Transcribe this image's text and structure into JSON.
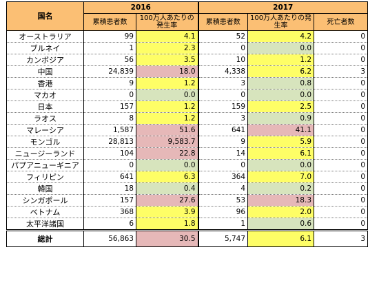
{
  "header": {
    "country_label": "国名",
    "year_2016": "2016",
    "year_2017": "2017",
    "cum_patients": "累積患者数",
    "rate_per_million": "100万人あたりの発生率",
    "deaths": "死亡者数"
  },
  "rows": [
    {
      "country": "オーストラリア",
      "c16": "99",
      "r16": "4.1",
      "r16_color": "yellow",
      "c17": "52",
      "r17": "4.2",
      "r17_color": "yellow",
      "d": "0"
    },
    {
      "country": "ブルネイ",
      "c16": "1",
      "r16": "2.3",
      "r16_color": "yellow",
      "c17": "0",
      "r17": "0.0",
      "r17_color": "green",
      "d": "0"
    },
    {
      "country": "カンボジア",
      "c16": "56",
      "r16": "3.5",
      "r16_color": "yellow",
      "c17": "10",
      "r17": "1.2",
      "r17_color": "yellow",
      "d": "0"
    },
    {
      "country": "中国",
      "c16": "24,839",
      "r16": "18.0",
      "r16_color": "pink",
      "c17": "4,338",
      "r17": "6.2",
      "r17_color": "yellow",
      "d": "3"
    },
    {
      "country": "香港",
      "c16": "9",
      "r16": "1.2",
      "r16_color": "yellow",
      "c17": "3",
      "r17": "0.8",
      "r17_color": "green",
      "d": "0"
    },
    {
      "country": "マカオ",
      "c16": "0",
      "r16": "0.0",
      "r16_color": "green",
      "c17": "0",
      "r17": "0.0",
      "r17_color": "green",
      "d": "0"
    },
    {
      "country": "日本",
      "c16": "157",
      "r16": "1.2",
      "r16_color": "yellow",
      "c17": "159",
      "r17": "2.5",
      "r17_color": "yellow",
      "d": "0"
    },
    {
      "country": "ラオス",
      "c16": "8",
      "r16": "1.2",
      "r16_color": "yellow",
      "c17": "3",
      "r17": "0.9",
      "r17_color": "green",
      "d": "0"
    },
    {
      "country": "マレーシア",
      "c16": "1,587",
      "r16": "51.6",
      "r16_color": "pink",
      "c17": "641",
      "r17": "41.1",
      "r17_color": "pink",
      "d": "0"
    },
    {
      "country": "モンゴル",
      "c16": "28,813",
      "r16": "9,583.7",
      "r16_color": "pink",
      "c17": "9",
      "r17": "5.9",
      "r17_color": "yellow",
      "d": "0"
    },
    {
      "country": "ニュージーランド",
      "c16": "104",
      "r16": "22.8",
      "r16_color": "pink",
      "c17": "14",
      "r17": "6.1",
      "r17_color": "yellow",
      "d": "0"
    },
    {
      "country": "パプアニューギニア",
      "c16": "0",
      "r16": "0.0",
      "r16_color": "green",
      "c17": "0",
      "r17": "0.0",
      "r17_color": "green",
      "d": "0"
    },
    {
      "country": "フィリピン",
      "c16": "641",
      "r16": "6.3",
      "r16_color": "yellow",
      "c17": "364",
      "r17": "7.0",
      "r17_color": "yellow",
      "d": "0"
    },
    {
      "country": "韓国",
      "c16": "18",
      "r16": "0.4",
      "r16_color": "green",
      "c17": "4",
      "r17": "0.2",
      "r17_color": "green",
      "d": "0"
    },
    {
      "country": "シンガポール",
      "c16": "157",
      "r16": "27.6",
      "r16_color": "pink",
      "c17": "53",
      "r17": "18.3",
      "r17_color": "pink",
      "d": "0"
    },
    {
      "country": "ベトナム",
      "c16": "368",
      "r16": "3.9",
      "r16_color": "yellow",
      "c17": "96",
      "r17": "2.0",
      "r17_color": "yellow",
      "d": "0"
    },
    {
      "country": "太平洋諸国",
      "c16": "6",
      "r16": "1.8",
      "r16_color": "yellow",
      "c17": "1",
      "r17": "0.6",
      "r17_color": "green",
      "d": "0"
    }
  ],
  "total": {
    "country": "総計",
    "c16": "56,863",
    "r16": "30.5",
    "r16_color": "pink",
    "c17": "5,747",
    "r17": "6.1",
    "r17_color": "yellow",
    "d": "3"
  },
  "colors": {
    "header": "#fbbf74",
    "yellow": "#fefe66",
    "pink": "#e6b8b8",
    "green": "#d7e4bd"
  }
}
